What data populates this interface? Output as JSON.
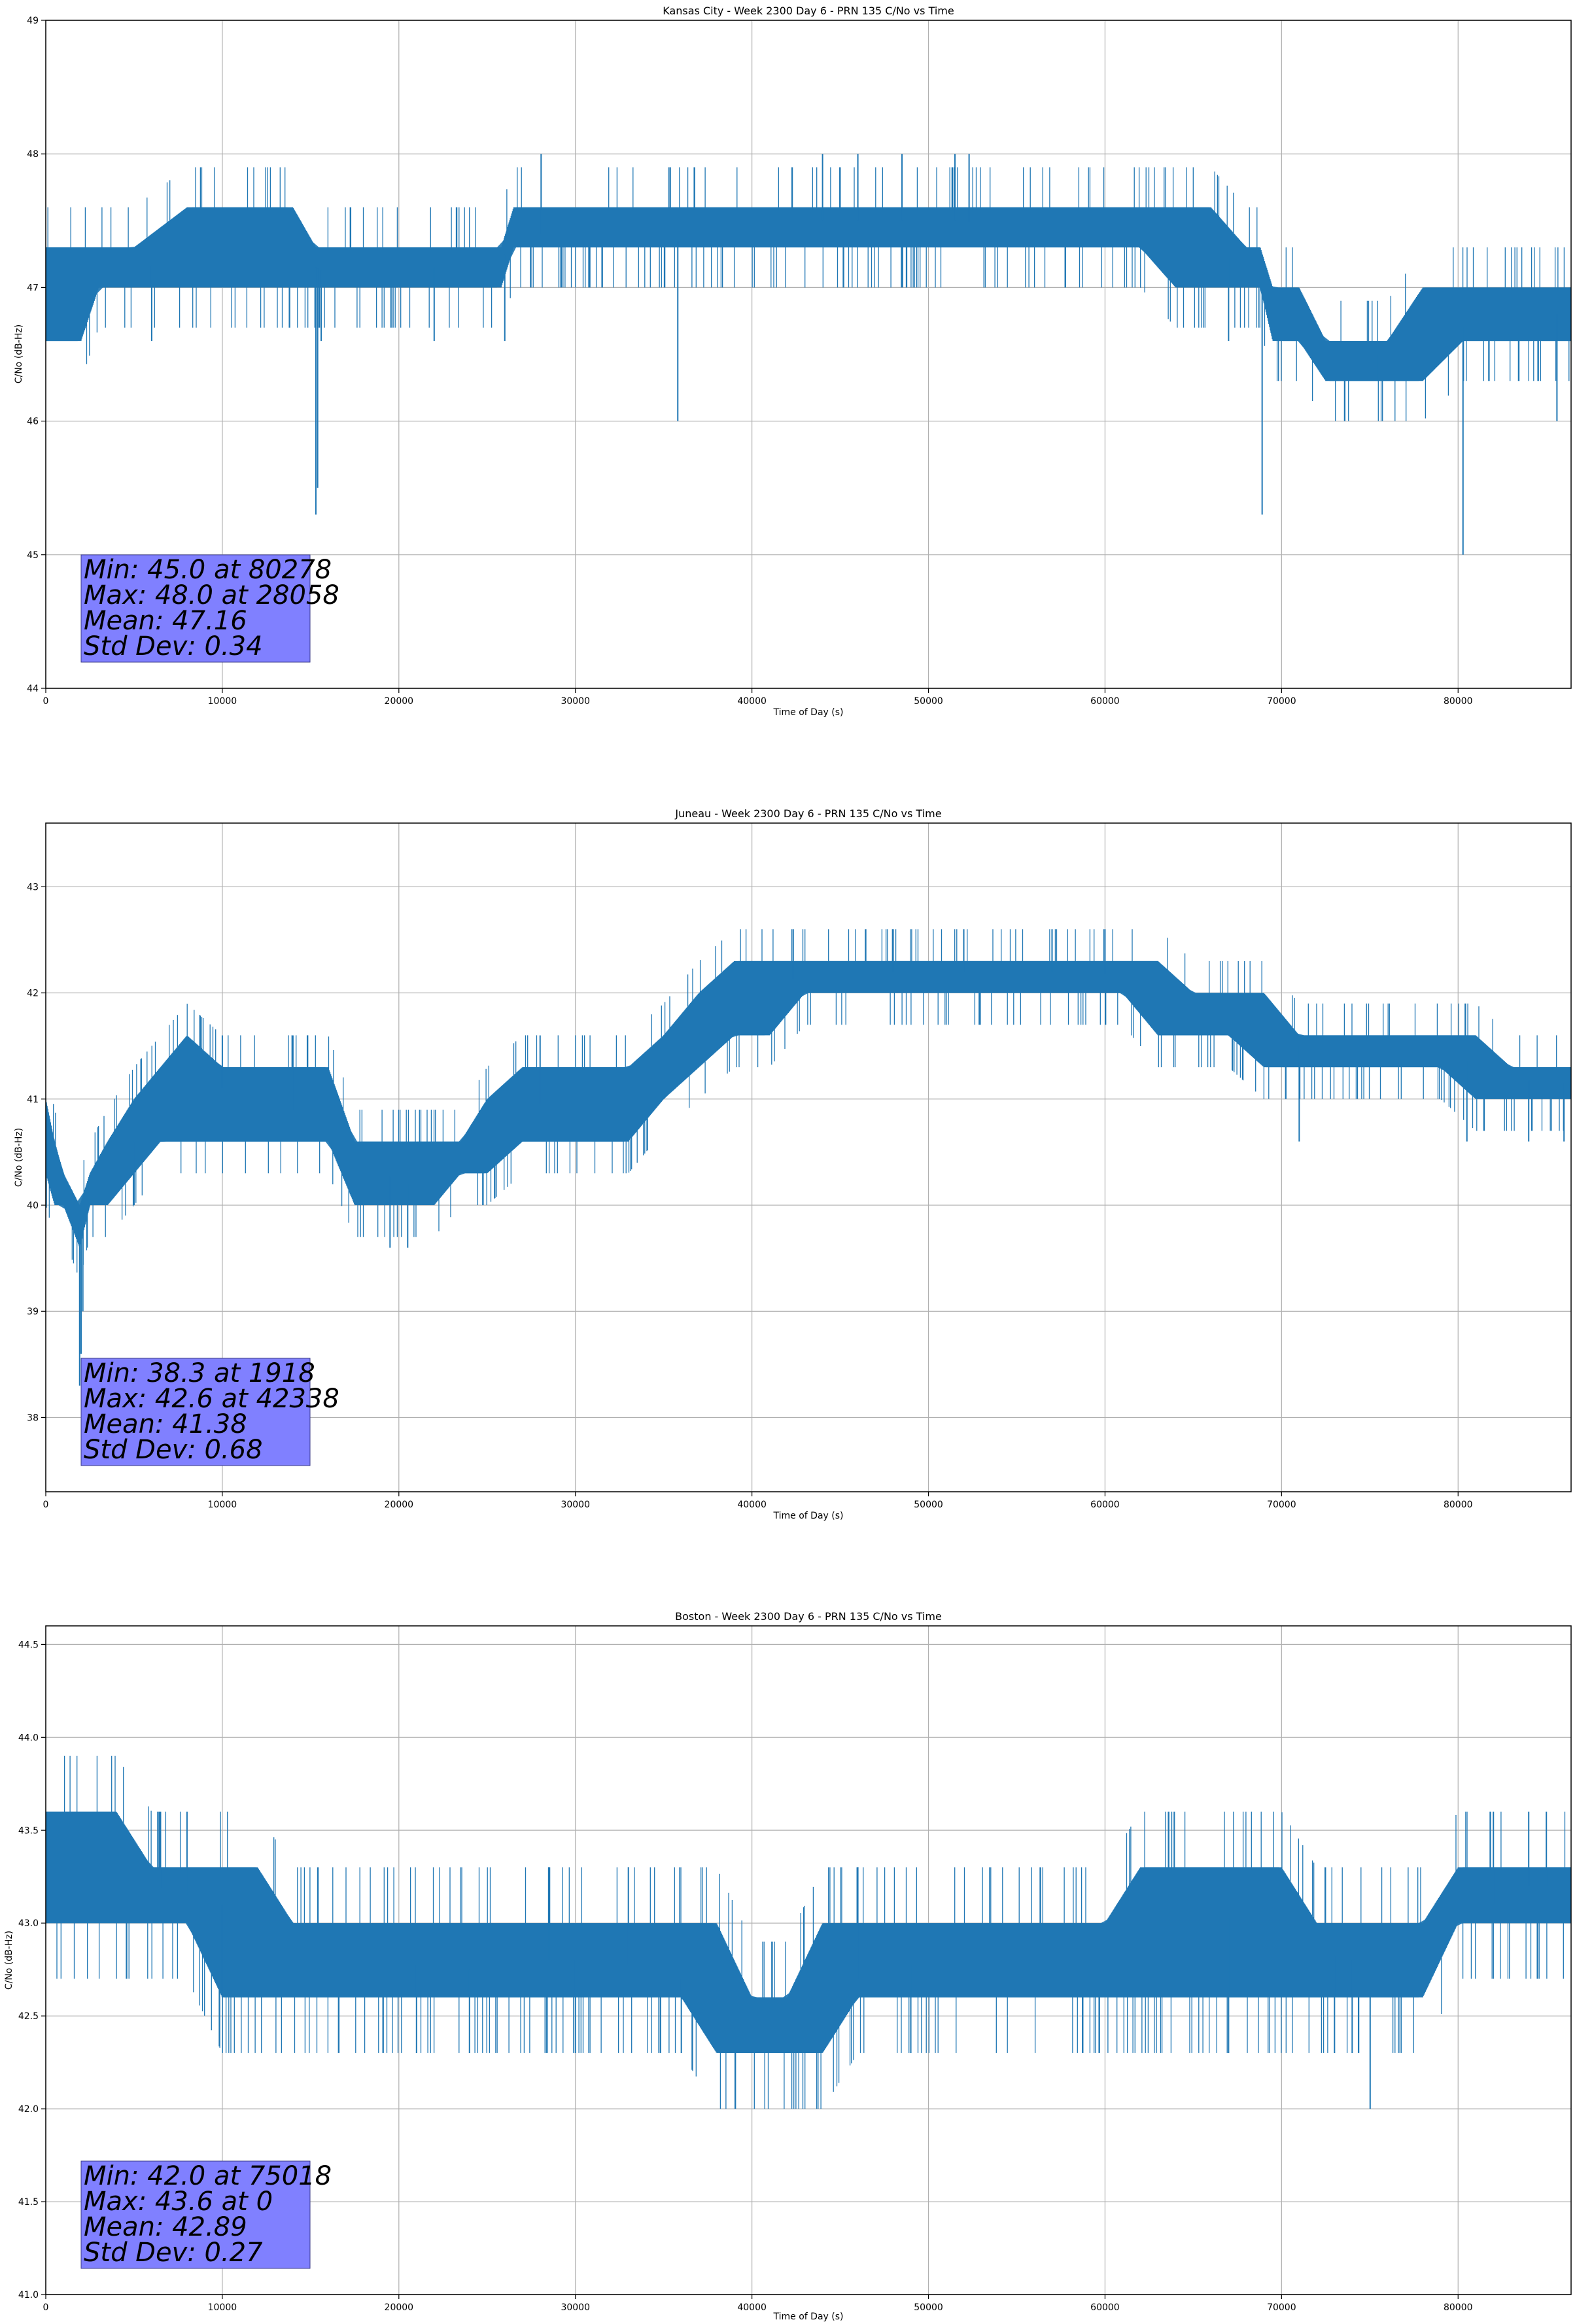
{
  "chart_data": [
    {
      "type": "line",
      "title": "Kansas City - Week 2300 Day 6 - PRN 135 C/No vs Time",
      "xlabel": "Time of Day (s)",
      "ylabel": "C/No (dB-Hz)",
      "xlim": [
        0,
        86400
      ],
      "ylim": [
        44,
        49
      ],
      "xticks": [
        0,
        10000,
        20000,
        30000,
        40000,
        50000,
        60000,
        70000,
        80000
      ],
      "xtick_labels": [
        "0",
        "10000",
        "20000",
        "30000",
        "40000",
        "50000",
        "60000",
        "70000",
        "80000"
      ],
      "yticks": [
        44,
        45,
        46,
        47,
        48,
        49
      ],
      "ytick_labels": [
        "44",
        "45",
        "46",
        "47",
        "48",
        "49"
      ],
      "grid": true,
      "line_color": "#1f77b4",
      "stats_box_color": "#8080ff",
      "stats": [
        "Min: 45.0 at 80278",
        "Max: 48.0 at 28058",
        "Mean: 47.16",
        "Std Dev: 0.34"
      ],
      "series": [
        {
          "x": [
            0,
            300,
            2000,
            3000,
            5000,
            8000,
            10000,
            12000,
            14000,
            15300,
            16000,
            18000,
            20000,
            22000,
            24000,
            25800,
            26500,
            28000,
            30000,
            32000,
            34000,
            35800,
            38000,
            40000,
            42000,
            44000,
            46000,
            48000,
            50000,
            52000,
            54000,
            56000,
            58000,
            60000,
            62000,
            64000,
            66000,
            68000,
            68800,
            69500,
            71000,
            72500,
            74000,
            76000,
            78000,
            80278,
            82000,
            84000,
            86400
          ],
          "y": [
            47.0,
            47.1,
            47.0,
            47.1,
            47.15,
            47.2,
            47.25,
            47.3,
            47.2,
            47.15,
            47.1,
            47.15,
            47.15,
            47.15,
            47.15,
            47.2,
            47.35,
            47.4,
            47.4,
            47.45,
            47.4,
            47.35,
            47.4,
            47.45,
            47.5,
            47.5,
            47.5,
            47.5,
            47.5,
            47.5,
            47.45,
            47.4,
            47.4,
            47.4,
            47.35,
            47.3,
            47.25,
            47.2,
            47.0,
            46.9,
            46.7,
            46.55,
            46.5,
            46.5,
            46.55,
            46.7,
            46.75,
            46.8,
            46.8
          ],
          "band_lo": [
            46.6,
            46.6,
            46.6,
            47.0,
            47.0,
            47.0,
            47.0,
            47.0,
            47.0,
            47.0,
            47.0,
            47.0,
            47.0,
            47.0,
            47.0,
            47.0,
            47.3,
            47.3,
            47.3,
            47.3,
            47.3,
            47.3,
            47.3,
            47.3,
            47.3,
            47.3,
            47.3,
            47.3,
            47.3,
            47.3,
            47.3,
            47.3,
            47.3,
            47.3,
            47.3,
            47.0,
            47.0,
            47.0,
            47.0,
            46.6,
            46.6,
            46.3,
            46.3,
            46.3,
            46.3,
            46.6,
            46.6,
            46.6,
            46.6
          ],
          "band_hi": [
            47.3,
            47.3,
            47.3,
            47.3,
            47.3,
            47.6,
            47.6,
            47.6,
            47.6,
            47.3,
            47.3,
            47.3,
            47.3,
            47.3,
            47.3,
            47.3,
            47.6,
            47.6,
            47.6,
            47.6,
            47.6,
            47.6,
            47.6,
            47.6,
            47.6,
            47.6,
            47.6,
            47.6,
            47.6,
            47.6,
            47.6,
            47.6,
            47.6,
            47.6,
            47.6,
            47.6,
            47.6,
            47.3,
            47.3,
            47.0,
            47.0,
            46.6,
            46.6,
            46.6,
            47.0,
            47.0,
            47.0,
            47.0,
            47.0
          ],
          "spikes": [
            [
              15300,
              45.3
            ],
            [
              15400,
              45.5
            ],
            [
              15600,
              46.6
            ],
            [
              28058,
              48.0
            ],
            [
              35800,
              46.0
            ],
            [
              44000,
              48.0
            ],
            [
              46000,
              48.0
            ],
            [
              48500,
              48.0
            ],
            [
              51500,
              48.0
            ],
            [
              52300,
              48.0
            ],
            [
              68900,
              45.3
            ],
            [
              80278,
              45.0
            ],
            [
              85600,
              46.0
            ],
            [
              26000,
              46.6
            ],
            [
              22000,
              46.6
            ],
            [
              6000,
              46.6
            ],
            [
              67000,
              46.6
            ],
            [
              75500,
              46.3
            ]
          ]
        }
      ]
    },
    {
      "type": "line",
      "title": "Juneau - Week 2300 Day 6 - PRN 135 C/No vs Time",
      "xlabel": "Time of Day (s)",
      "ylabel": "C/No (dB-Hz)",
      "xlim": [
        0,
        86400
      ],
      "ylim": [
        37.3,
        43.6
      ],
      "xticks": [
        0,
        10000,
        20000,
        30000,
        40000,
        50000,
        60000,
        70000,
        80000
      ],
      "xtick_labels": [
        "0",
        "10000",
        "20000",
        "30000",
        "40000",
        "50000",
        "60000",
        "70000",
        "80000"
      ],
      "yticks": [
        38,
        39,
        40,
        41,
        42,
        43
      ],
      "ytick_labels": [
        "38",
        "39",
        "40",
        "41",
        "42",
        "43"
      ],
      "grid": true,
      "line_color": "#1f77b4",
      "stats_box_color": "#8080ff",
      "stats": [
        "Min: 38.3 at 1918",
        "Max: 42.6 at 42338",
        "Mean: 41.38",
        "Std Dev: 0.68"
      ],
      "series": [
        {
          "x": [
            0,
            500,
            1000,
            1918,
            2500,
            3500,
            5000,
            6500,
            8000,
            10000,
            12000,
            14000,
            16000,
            17500,
            19000,
            20500,
            22000,
            23500,
            25000,
            27000,
            29000,
            31000,
            33000,
            35000,
            37000,
            39000,
            41000,
            43000,
            45000,
            47000,
            49000,
            51000,
            53000,
            55000,
            57000,
            59000,
            61000,
            63000,
            65000,
            67000,
            69000,
            71000,
            73000,
            75000,
            77000,
            79000,
            81000,
            83000,
            85000,
            86400
          ],
          "y": [
            40.6,
            40.3,
            40.2,
            39.8,
            40.2,
            40.5,
            40.6,
            40.9,
            41.2,
            41.1,
            40.9,
            40.9,
            40.9,
            40.6,
            40.3,
            40.2,
            40.3,
            40.5,
            40.8,
            40.9,
            41.0,
            41.1,
            41.2,
            41.4,
            41.7,
            41.9,
            42.1,
            42.15,
            42.2,
            42.2,
            42.2,
            42.2,
            42.2,
            42.2,
            42.2,
            42.2,
            42.15,
            42.1,
            41.9,
            41.8,
            41.7,
            41.5,
            41.45,
            41.45,
            41.45,
            41.4,
            41.35,
            41.2,
            41.15,
            41.15
          ],
          "band_lo": [
            40.3,
            40.0,
            40.0,
            39.6,
            40.0,
            40.0,
            40.3,
            40.6,
            40.6,
            40.6,
            40.6,
            40.6,
            40.6,
            40.0,
            40.0,
            40.0,
            40.0,
            40.3,
            40.3,
            40.6,
            40.6,
            40.6,
            40.6,
            41.0,
            41.3,
            41.6,
            41.6,
            42.0,
            42.0,
            42.0,
            42.0,
            42.0,
            42.0,
            42.0,
            42.0,
            42.0,
            42.0,
            41.6,
            41.6,
            41.6,
            41.3,
            41.3,
            41.3,
            41.3,
            41.3,
            41.3,
            41.0,
            41.0,
            41.0,
            41.0
          ],
          "band_hi": [
            41.0,
            40.6,
            40.3,
            40.0,
            40.3,
            40.6,
            41.0,
            41.3,
            41.6,
            41.3,
            41.3,
            41.3,
            41.3,
            40.6,
            40.6,
            40.6,
            40.6,
            40.6,
            41.0,
            41.3,
            41.3,
            41.3,
            41.3,
            41.6,
            42.0,
            42.3,
            42.3,
            42.3,
            42.3,
            42.3,
            42.3,
            42.3,
            42.3,
            42.3,
            42.3,
            42.3,
            42.3,
            42.3,
            42.0,
            42.0,
            42.0,
            41.6,
            41.6,
            41.6,
            41.6,
            41.6,
            41.6,
            41.3,
            41.3,
            41.3
          ],
          "spikes": [
            [
              1918,
              38.3
            ],
            [
              2000,
              38.6
            ],
            [
              2100,
              39.0
            ],
            [
              19500,
              39.6
            ],
            [
              20500,
              39.6
            ],
            [
              42338,
              42.6
            ],
            [
              48000,
              42.6
            ],
            [
              52000,
              42.6
            ],
            [
              57000,
              42.6
            ],
            [
              60000,
              42.6
            ],
            [
              10000,
              41.6
            ],
            [
              14000,
              41.6
            ],
            [
              28000,
              41.6
            ],
            [
              71000,
              40.6
            ],
            [
              80500,
              40.6
            ],
            [
              84000,
              40.6
            ],
            [
              86000,
              40.6
            ],
            [
              5000,
              40.0
            ]
          ]
        }
      ]
    },
    {
      "type": "line",
      "title": "Boston - Week 2300 Day 6 - PRN 135 C/No vs Time",
      "xlabel": "Time of Day (s)",
      "ylabel": "C/No (dB-Hz)",
      "xlim": [
        0,
        86400
      ],
      "ylim": [
        41.0,
        44.6
      ],
      "xticks": [
        0,
        10000,
        20000,
        30000,
        40000,
        50000,
        60000,
        70000,
        80000
      ],
      "xtick_labels": [
        "0",
        "10000",
        "20000",
        "30000",
        "40000",
        "50000",
        "60000",
        "70000",
        "80000"
      ],
      "yticks": [
        41.0,
        41.5,
        42.0,
        42.5,
        43.0,
        43.5,
        44.0,
        44.5
      ],
      "ytick_labels": [
        "41.0",
        "41.5",
        "42.0",
        "42.5",
        "43.0",
        "43.5",
        "44.0",
        "44.5"
      ],
      "grid": true,
      "line_color": "#1f77b4",
      "stats_box_color": "#8080ff",
      "stats": [
        "Min: 42.0 at 75018",
        "Max: 43.6 at 0",
        "Mean: 42.89",
        "Std Dev: 0.27"
      ],
      "series": [
        {
          "x": [
            0,
            2000,
            4000,
            6000,
            8000,
            10000,
            12000,
            14000,
            16000,
            18000,
            20000,
            22000,
            24000,
            26000,
            28000,
            30000,
            32000,
            34000,
            36000,
            38000,
            40000,
            42000,
            44000,
            46000,
            48000,
            50000,
            52000,
            54000,
            56000,
            58000,
            60000,
            62000,
            64000,
            66000,
            68000,
            70000,
            72000,
            74000,
            76000,
            78000,
            80000,
            82000,
            84000,
            86400
          ],
          "y": [
            43.3,
            43.3,
            43.25,
            43.2,
            43.15,
            43.1,
            43.0,
            42.9,
            42.85,
            42.8,
            42.8,
            42.75,
            42.75,
            42.75,
            42.8,
            42.8,
            42.8,
            42.75,
            42.7,
            42.6,
            42.55,
            42.55,
            42.6,
            42.7,
            42.75,
            42.8,
            42.85,
            42.9,
            42.95,
            43.0,
            43.05,
            43.1,
            43.1,
            43.05,
            43.0,
            42.9,
            42.85,
            42.8,
            42.85,
            42.9,
            43.0,
            43.1,
            43.2,
            43.2
          ],
          "band_lo": [
            43.0,
            43.0,
            43.0,
            43.0,
            43.0,
            42.6,
            42.6,
            42.6,
            42.6,
            42.6,
            42.6,
            42.6,
            42.6,
            42.6,
            42.6,
            42.6,
            42.6,
            42.6,
            42.6,
            42.3,
            42.3,
            42.3,
            42.3,
            42.6,
            42.6,
            42.6,
            42.6,
            42.6,
            42.6,
            42.6,
            42.6,
            42.6,
            42.6,
            42.6,
            42.6,
            42.6,
            42.6,
            42.6,
            42.6,
            42.6,
            43.0,
            43.0,
            43.0,
            43.0
          ],
          "band_hi": [
            43.6,
            43.6,
            43.6,
            43.3,
            43.3,
            43.3,
            43.3,
            43.0,
            43.0,
            43.0,
            43.0,
            43.0,
            43.0,
            43.0,
            43.0,
            43.0,
            43.0,
            43.0,
            43.0,
            43.0,
            42.6,
            42.6,
            43.0,
            43.0,
            43.0,
            43.0,
            43.0,
            43.0,
            43.0,
            43.0,
            43.0,
            43.3,
            43.3,
            43.3,
            43.3,
            43.3,
            43.0,
            43.0,
            43.0,
            43.0,
            43.3,
            43.3,
            43.3,
            43.3
          ],
          "spikes": [
            [
              75018,
              42.0
            ],
            [
              0,
              43.6
            ],
            [
              6500,
              43.6
            ],
            [
              8000,
              43.6
            ],
            [
              82000,
              43.6
            ],
            [
              84000,
              43.6
            ],
            [
              85000,
              43.6
            ],
            [
              21000,
              42.3
            ],
            [
              24000,
              42.3
            ],
            [
              30000,
              42.3
            ],
            [
              36000,
              42.3
            ],
            [
              49000,
              42.3
            ],
            [
              67000,
              42.3
            ],
            [
              73000,
              42.3
            ],
            [
              74000,
              42.3
            ],
            [
              28500,
              43.3
            ],
            [
              33000,
              43.3
            ],
            [
              46000,
              43.3
            ],
            [
              10000,
              42.6
            ]
          ]
        }
      ]
    }
  ]
}
